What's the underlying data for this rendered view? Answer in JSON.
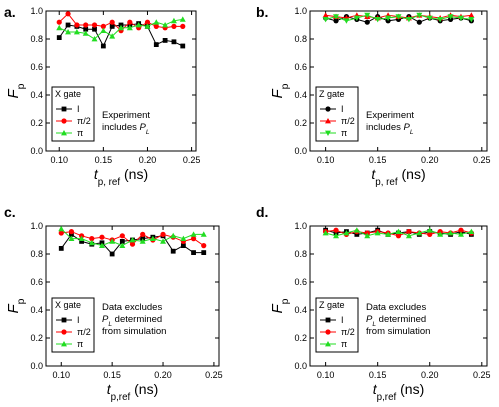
{
  "colors": {
    "I": "#000000",
    "pi2": "#ff0000",
    "pi": "#22dd22"
  },
  "chart_data": [
    {
      "type": "line",
      "panel_label": "a.",
      "ylabel": {
        "main": "F",
        "sub": "p"
      },
      "xlabel": {
        "main": "t",
        "sub": "p, ref",
        "unit": " (ns)"
      },
      "xlim": [
        0.085,
        0.255
      ],
      "ylim": [
        0.0,
        1.0
      ],
      "x_ticks": [
        "0.10",
        "0.15",
        "0.20",
        "0.25"
      ],
      "y_ticks": [
        "0.0",
        "0.2",
        "0.4",
        "0.6",
        "0.8",
        "1.0"
      ],
      "legend": {
        "title": "X gate",
        "position": "center-left"
      },
      "annotation": [
        "Experiment",
        "includes P_L"
      ],
      "series": [
        {
          "name": "I",
          "marker": "square",
          "color": "#000000",
          "x": [
            0.1,
            0.11,
            0.12,
            0.13,
            0.14,
            0.15,
            0.16,
            0.17,
            0.18,
            0.19,
            0.2,
            0.21,
            0.22,
            0.23,
            0.24
          ],
          "y": [
            0.81,
            0.9,
            0.89,
            0.87,
            0.87,
            0.75,
            0.89,
            0.9,
            0.9,
            0.91,
            0.89,
            0.76,
            0.79,
            0.78,
            0.75
          ]
        },
        {
          "name": "π/2",
          "marker": "circle",
          "color": "#ff0000",
          "x": [
            0.1,
            0.11,
            0.12,
            0.13,
            0.14,
            0.15,
            0.16,
            0.17,
            0.18,
            0.19,
            0.2,
            0.21,
            0.22,
            0.23,
            0.24
          ],
          "y": [
            0.92,
            0.98,
            0.9,
            0.9,
            0.9,
            0.89,
            0.92,
            0.86,
            0.92,
            0.88,
            0.92,
            0.89,
            0.88,
            0.89,
            0.89
          ]
        },
        {
          "name": "π",
          "marker": "triangle-up",
          "color": "#22dd22",
          "x": [
            0.1,
            0.11,
            0.12,
            0.13,
            0.14,
            0.15,
            0.16,
            0.17,
            0.18,
            0.19,
            0.2,
            0.21,
            0.22,
            0.23,
            0.24
          ],
          "y": [
            0.88,
            0.85,
            0.85,
            0.84,
            0.8,
            0.86,
            0.82,
            0.88,
            0.88,
            0.9,
            0.89,
            0.92,
            0.9,
            0.93,
            0.94
          ]
        }
      ]
    },
    {
      "type": "line",
      "panel_label": "b.",
      "ylabel": {
        "main": "F",
        "sub": "p"
      },
      "xlabel": {
        "main": "t",
        "sub": "p, ref",
        "unit": " (ns)"
      },
      "xlim": [
        0.085,
        0.255
      ],
      "ylim": [
        0.0,
        1.0
      ],
      "x_ticks": [
        "0.10",
        "0.15",
        "0.20",
        "0.25"
      ],
      "y_ticks": [
        "0.0",
        "0.2",
        "0.4",
        "0.6",
        "0.8",
        "1.0"
      ],
      "legend": {
        "title": "Z gate",
        "position": "center-left"
      },
      "annotation": [
        "Experiment",
        "includes P_L"
      ],
      "series": [
        {
          "name": "I",
          "marker": "circle",
          "color": "#000000",
          "x": [
            0.1,
            0.11,
            0.12,
            0.13,
            0.14,
            0.15,
            0.16,
            0.17,
            0.18,
            0.19,
            0.2,
            0.21,
            0.22,
            0.23,
            0.24
          ],
          "y": [
            0.95,
            0.93,
            0.96,
            0.94,
            0.92,
            0.96,
            0.93,
            0.94,
            0.96,
            0.92,
            0.95,
            0.93,
            0.94,
            0.95,
            0.93
          ]
        },
        {
          "name": "π/2",
          "marker": "triangle-up",
          "color": "#ff0000",
          "x": [
            0.1,
            0.11,
            0.12,
            0.13,
            0.14,
            0.15,
            0.16,
            0.17,
            0.18,
            0.19,
            0.2,
            0.21,
            0.22,
            0.23,
            0.24
          ],
          "y": [
            0.97,
            0.96,
            0.95,
            0.97,
            0.96,
            0.95,
            0.97,
            0.96,
            0.95,
            0.97,
            0.96,
            0.95,
            0.97,
            0.96,
            0.97
          ]
        },
        {
          "name": "π",
          "marker": "triangle-down",
          "color": "#22dd22",
          "x": [
            0.1,
            0.11,
            0.12,
            0.13,
            0.14,
            0.15,
            0.16,
            0.17,
            0.18,
            0.19,
            0.2,
            0.21,
            0.22,
            0.23,
            0.24
          ],
          "y": [
            0.94,
            0.96,
            0.93,
            0.95,
            0.97,
            0.94,
            0.95,
            0.96,
            0.94,
            0.97,
            0.95,
            0.94,
            0.96,
            0.95,
            0.94
          ]
        }
      ]
    },
    {
      "type": "line",
      "panel_label": "c.",
      "ylabel": {
        "main": "F",
        "sub": "p"
      },
      "xlabel": {
        "main": "t",
        "sub": "p,ref",
        "unit": " (ns)"
      },
      "xlim": [
        0.085,
        0.255
      ],
      "ylim": [
        0.0,
        1.0
      ],
      "x_ticks": [
        "0.10",
        "0.15",
        "0.20",
        "0.25"
      ],
      "y_ticks": [
        "0.0",
        "0.2",
        "0.4",
        "0.6",
        "0.8",
        "1.0"
      ],
      "legend": {
        "title": "X gate",
        "position": "bottom-left"
      },
      "annotation": [
        "Data excludes",
        "P_L determined",
        "from simulation"
      ],
      "series": [
        {
          "name": "I",
          "marker": "square",
          "color": "#000000",
          "x": [
            0.1,
            0.11,
            0.12,
            0.13,
            0.14,
            0.15,
            0.16,
            0.17,
            0.18,
            0.19,
            0.2,
            0.21,
            0.22,
            0.23,
            0.24
          ],
          "y": [
            0.84,
            0.94,
            0.89,
            0.87,
            0.88,
            0.8,
            0.89,
            0.9,
            0.91,
            0.92,
            0.93,
            0.82,
            0.86,
            0.81,
            0.81
          ]
        },
        {
          "name": "π/2",
          "marker": "circle",
          "color": "#ff0000",
          "x": [
            0.1,
            0.11,
            0.12,
            0.13,
            0.14,
            0.15,
            0.16,
            0.17,
            0.18,
            0.19,
            0.2,
            0.21,
            0.22,
            0.23,
            0.24
          ],
          "y": [
            0.95,
            0.96,
            0.93,
            0.91,
            0.92,
            0.9,
            0.93,
            0.87,
            0.94,
            0.9,
            0.94,
            0.92,
            0.89,
            0.91,
            0.86
          ]
        },
        {
          "name": "π",
          "marker": "triangle-up",
          "color": "#22dd22",
          "x": [
            0.1,
            0.11,
            0.12,
            0.13,
            0.14,
            0.15,
            0.16,
            0.17,
            0.18,
            0.19,
            0.2,
            0.21,
            0.22,
            0.23,
            0.24
          ],
          "y": [
            0.98,
            0.91,
            0.91,
            0.88,
            0.86,
            0.89,
            0.86,
            0.9,
            0.89,
            0.91,
            0.89,
            0.93,
            0.91,
            0.94,
            0.94
          ]
        }
      ]
    },
    {
      "type": "line",
      "panel_label": "d.",
      "ylabel": {
        "main": "F",
        "sub": "p"
      },
      "xlabel": {
        "main": "t",
        "sub": "p,ref",
        "unit": " (ns)"
      },
      "xlim": [
        0.085,
        0.255
      ],
      "ylim": [
        0.0,
        1.0
      ],
      "x_ticks": [
        "0.10",
        "0.15",
        "0.20",
        "0.25"
      ],
      "y_ticks": [
        "0.0",
        "0.2",
        "0.4",
        "0.6",
        "0.8",
        "1.0"
      ],
      "legend": {
        "title": "Z gate",
        "position": "bottom-left"
      },
      "annotation": [
        "Data excludes",
        "P_L determined",
        "from simulation"
      ],
      "series": [
        {
          "name": "I",
          "marker": "square",
          "color": "#000000",
          "x": [
            0.1,
            0.11,
            0.12,
            0.13,
            0.14,
            0.15,
            0.16,
            0.17,
            0.18,
            0.19,
            0.2,
            0.21,
            0.22,
            0.23,
            0.24
          ],
          "y": [
            0.97,
            0.95,
            0.96,
            0.94,
            0.95,
            0.97,
            0.94,
            0.95,
            0.96,
            0.94,
            0.96,
            0.95,
            0.94,
            0.96,
            0.94
          ]
        },
        {
          "name": "π/2",
          "marker": "circle",
          "color": "#ff0000",
          "x": [
            0.1,
            0.11,
            0.12,
            0.13,
            0.14,
            0.15,
            0.16,
            0.17,
            0.18,
            0.19,
            0.2,
            0.21,
            0.22,
            0.23,
            0.24
          ],
          "y": [
            0.96,
            0.97,
            0.94,
            0.96,
            0.95,
            0.96,
            0.95,
            0.93,
            0.96,
            0.95,
            0.94,
            0.96,
            0.95,
            0.97,
            0.95
          ]
        },
        {
          "name": "π",
          "marker": "triangle-up",
          "color": "#22dd22",
          "x": [
            0.1,
            0.11,
            0.12,
            0.13,
            0.14,
            0.15,
            0.16,
            0.17,
            0.18,
            0.19,
            0.2,
            0.21,
            0.22,
            0.23,
            0.24
          ],
          "y": [
            0.95,
            0.93,
            0.95,
            0.97,
            0.93,
            0.95,
            0.94,
            0.96,
            0.93,
            0.95,
            0.97,
            0.94,
            0.95,
            0.94,
            0.96
          ]
        }
      ]
    }
  ]
}
